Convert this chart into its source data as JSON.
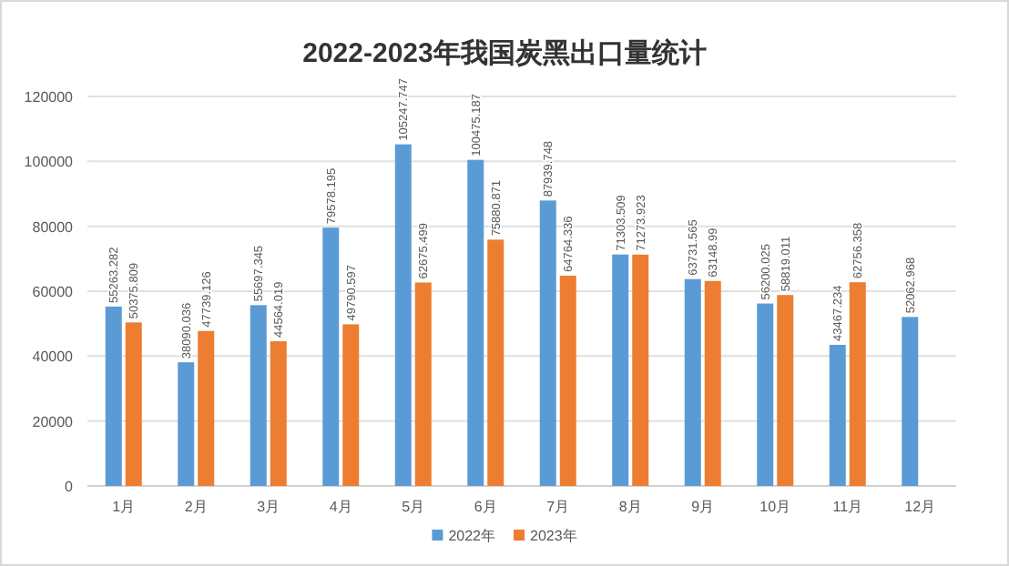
{
  "chart_data": {
    "type": "bar",
    "title": "2022-2023年我国炭黑出口量统计",
    "categories": [
      "1月",
      "2月",
      "3月",
      "4月",
      "5月",
      "6月",
      "7月",
      "8月",
      "9月",
      "10月",
      "11月",
      "12月"
    ],
    "series": [
      {
        "name": "2022年",
        "color": "#5b9bd5",
        "values": [
          55263.282,
          38090.036,
          55697.345,
          79578.195,
          105247.747,
          100475.187,
          87939.748,
          71303.509,
          63731.565,
          56200.025,
          43467.234,
          52062.968
        ]
      },
      {
        "name": "2023年",
        "color": "#ed7d31",
        "values": [
          50375.809,
          47739.126,
          44564.019,
          49790.597,
          62675.499,
          75880.871,
          64764.336,
          71273.923,
          63148.99,
          58819.011,
          62756.358,
          null
        ]
      }
    ],
    "ylim": [
      0,
      120000
    ],
    "yticks": [
      0,
      20000,
      40000,
      60000,
      80000,
      100000,
      120000
    ],
    "grid": "y",
    "legend": "bottom",
    "data_labels": true
  }
}
